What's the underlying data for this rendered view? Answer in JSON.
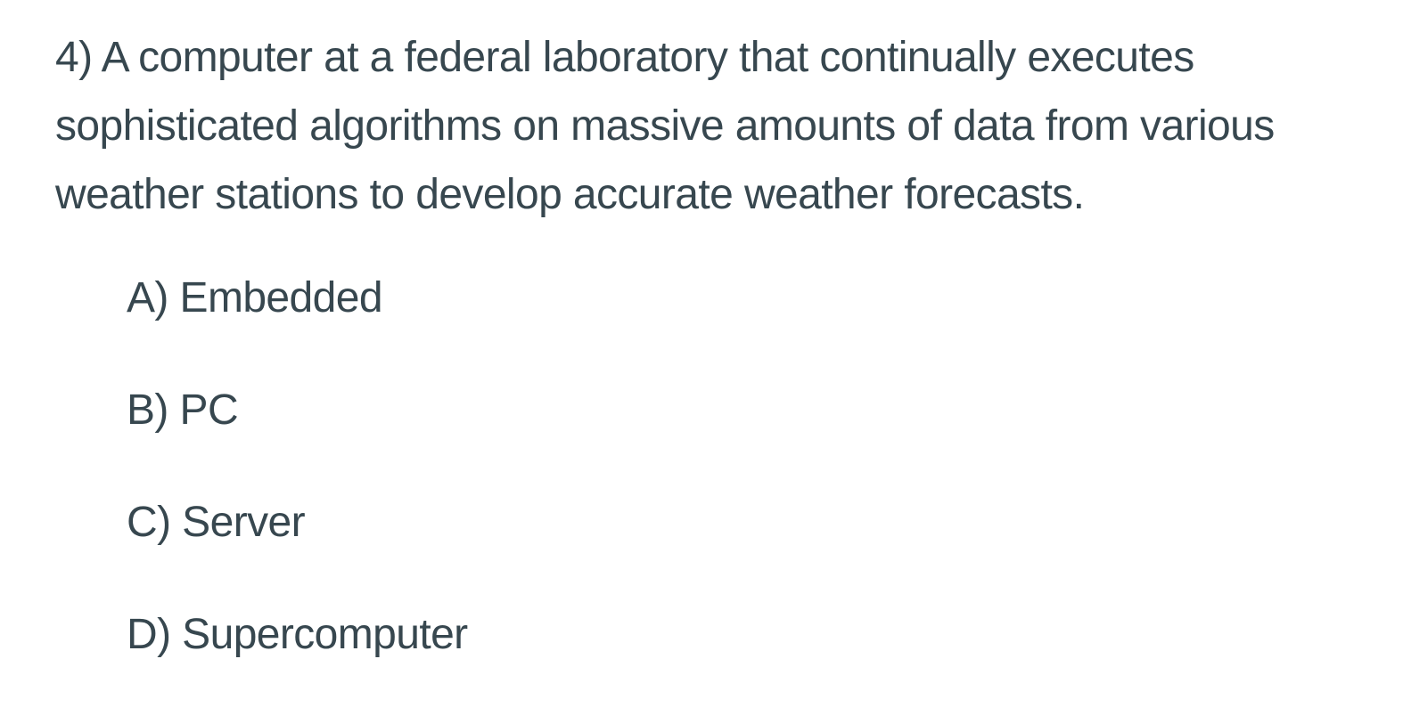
{
  "question": {
    "lines": [
      "4) A computer at a federal laboratory that continually executes",
      "sophisticated algorithms on massive amounts of data from various",
      "weather stations to develop accurate weather forecasts."
    ]
  },
  "options": [
    "A) Embedded",
    "B) PC",
    "C) Server",
    "D) Supercomputer"
  ]
}
